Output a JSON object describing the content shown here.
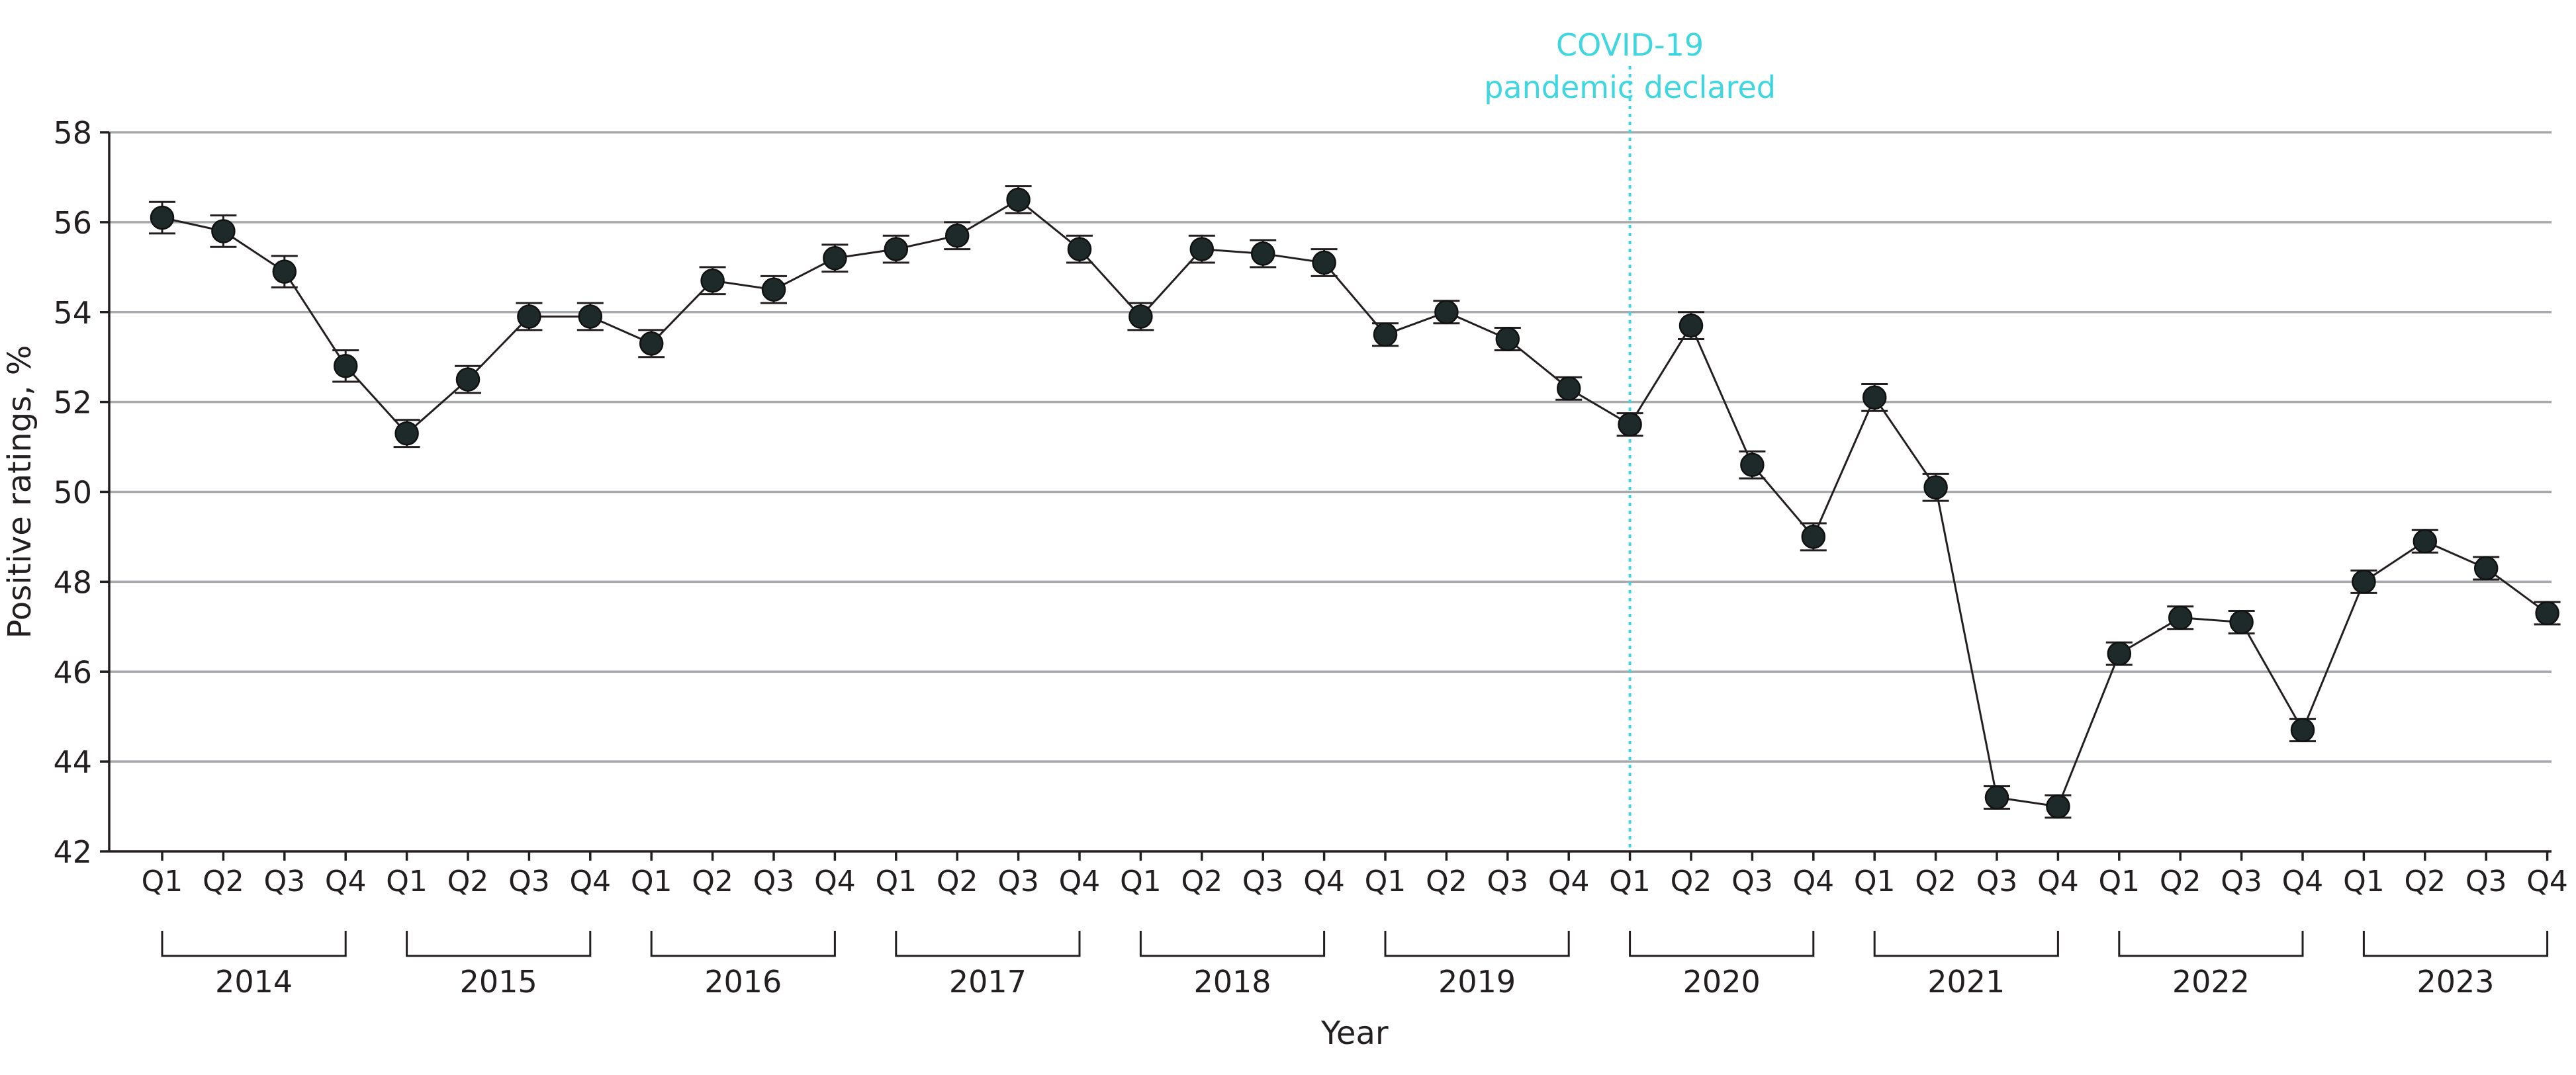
{
  "chart_data": {
    "type": "line",
    "title": "",
    "xlabel": "Year",
    "ylabel": "Positive ratings, %",
    "ylim": [
      42,
      58
    ],
    "yticks": [
      42,
      44,
      46,
      48,
      50,
      52,
      54,
      56,
      58
    ],
    "grid": true,
    "quarters": [
      "Q1",
      "Q2",
      "Q3",
      "Q4"
    ],
    "years": [
      "2014",
      "2015",
      "2016",
      "2017",
      "2018",
      "2019",
      "2020",
      "2021",
      "2022",
      "2023"
    ],
    "series": [
      {
        "name": "Positive ratings",
        "values": [
          56.1,
          55.8,
          54.9,
          52.8,
          51.3,
          52.5,
          53.9,
          53.9,
          53.3,
          54.7,
          54.5,
          55.2,
          55.4,
          55.7,
          56.5,
          55.4,
          53.9,
          55.4,
          55.3,
          55.1,
          53.5,
          54.0,
          53.4,
          52.3,
          51.5,
          53.7,
          50.6,
          49.0,
          52.1,
          50.1,
          43.2,
          43.0,
          46.4,
          47.2,
          47.1,
          44.7,
          48.0,
          48.9,
          48.3,
          47.3
        ],
        "errors": [
          0.35,
          0.35,
          0.35,
          0.35,
          0.3,
          0.3,
          0.3,
          0.3,
          0.3,
          0.3,
          0.3,
          0.3,
          0.3,
          0.3,
          0.3,
          0.3,
          0.3,
          0.3,
          0.3,
          0.3,
          0.25,
          0.25,
          0.25,
          0.25,
          0.25,
          0.3,
          0.3,
          0.3,
          0.3,
          0.3,
          0.25,
          0.25,
          0.25,
          0.25,
          0.25,
          0.25,
          0.25,
          0.25,
          0.25,
          0.25
        ]
      }
    ],
    "annotations": [
      {
        "text_line1": "COVID-19",
        "text_line2": "pandemic declared",
        "at_index": 24,
        "color": "#3fd6e0"
      }
    ],
    "colors": {
      "marker": "#1e2a2a",
      "line": "#231f20",
      "grid": "#a7a9ac",
      "annotation": "#3fd6e0"
    }
  }
}
